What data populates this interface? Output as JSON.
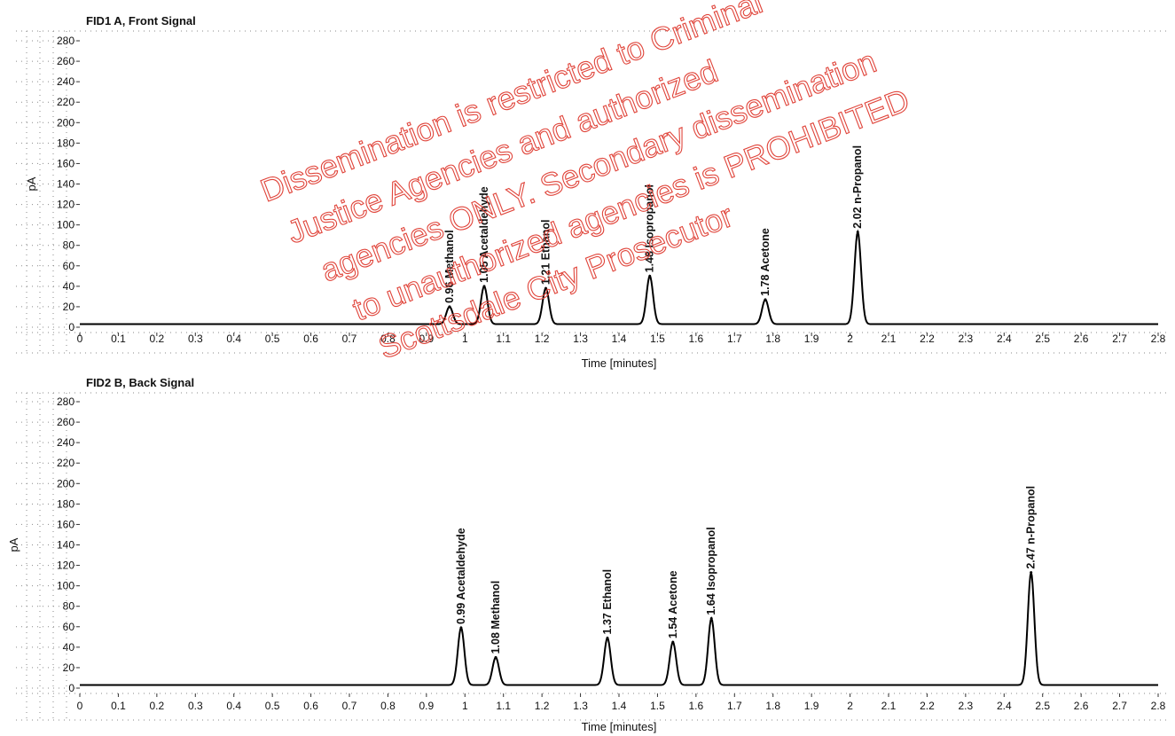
{
  "chart_data": [
    {
      "type": "line",
      "title": "FID1 A, Front Signal",
      "xlabel": "Time [minutes]",
      "ylabel": "pA",
      "xlim": [
        0,
        2.8
      ],
      "ylim": [
        0,
        280
      ],
      "x_ticks": [
        "0",
        "0.1",
        "0.2",
        "0.3",
        "0.4",
        "0.5",
        "0.6",
        "0.7",
        "0.8",
        "0.9",
        "1",
        "1.1",
        "1.2",
        "1.3",
        "1.4",
        "1.5",
        "1.6",
        "1.7",
        "1.8",
        "1.9",
        "2",
        "2.1",
        "2.2",
        "2.3",
        "2.4",
        "2.5",
        "2.6",
        "2.7",
        "2.8"
      ],
      "y_ticks": [
        "0",
        "20",
        "40",
        "60",
        "80",
        "100",
        "120",
        "140",
        "160",
        "180",
        "200",
        "220",
        "240",
        "260",
        "280"
      ],
      "baseline": 3,
      "peaks": [
        {
          "time": 0.96,
          "height": 17,
          "label": "0.96  Methanol"
        },
        {
          "time": 1.05,
          "height": 37,
          "label": "1.05  Acetaldehyde"
        },
        {
          "time": 1.21,
          "height": 35,
          "label": "1.21  Ethanol"
        },
        {
          "time": 1.48,
          "height": 47,
          "label": "1.48  Isopropanol"
        },
        {
          "time": 1.78,
          "height": 24,
          "label": "1.78  Acetone"
        },
        {
          "time": 2.02,
          "height": 90,
          "label": "2.02  n-Propanol"
        }
      ]
    },
    {
      "type": "line",
      "title": "FID2 B, Back Signal",
      "xlabel": "Time [minutes]",
      "ylabel": "pA",
      "xlim": [
        0,
        2.8
      ],
      "ylim": [
        0,
        280
      ],
      "x_ticks": [
        "0",
        "0.1",
        "0.2",
        "0.3",
        "0.4",
        "0.5",
        "0.6",
        "0.7",
        "0.8",
        "0.9",
        "1",
        "1.1",
        "1.2",
        "1.3",
        "1.4",
        "1.5",
        "1.6",
        "1.7",
        "1.8",
        "1.9",
        "2",
        "2.1",
        "2.2",
        "2.3",
        "2.4",
        "2.5",
        "2.6",
        "2.7",
        "2.8"
      ],
      "y_ticks": [
        "0",
        "20",
        "40",
        "60",
        "80",
        "100",
        "120",
        "140",
        "160",
        "180",
        "200",
        "220",
        "240",
        "260",
        "280"
      ],
      "baseline": 3,
      "peaks": [
        {
          "time": 0.99,
          "height": 56,
          "label": "0.99  Acetaldehyde"
        },
        {
          "time": 1.08,
          "height": 27,
          "label": "1.08  Methanol"
        },
        {
          "time": 1.37,
          "height": 46,
          "label": "1.37  Ethanol"
        },
        {
          "time": 1.54,
          "height": 42,
          "label": "1.54  Acetone"
        },
        {
          "time": 1.64,
          "height": 65,
          "label": "1.64  Isopropanol"
        },
        {
          "time": 2.47,
          "height": 110,
          "label": "2.47  n-Propanol"
        }
      ]
    }
  ],
  "watermark": {
    "lines": [
      "Dissemination is restricted to Criminal",
      "Justice Agencies and authorized",
      "agencies ONLY. Secondary dissemination",
      "to unauthorized agencies is PROHIBITED",
      "Scottsdale City Prosecutor"
    ],
    "color": "#e0443a"
  }
}
